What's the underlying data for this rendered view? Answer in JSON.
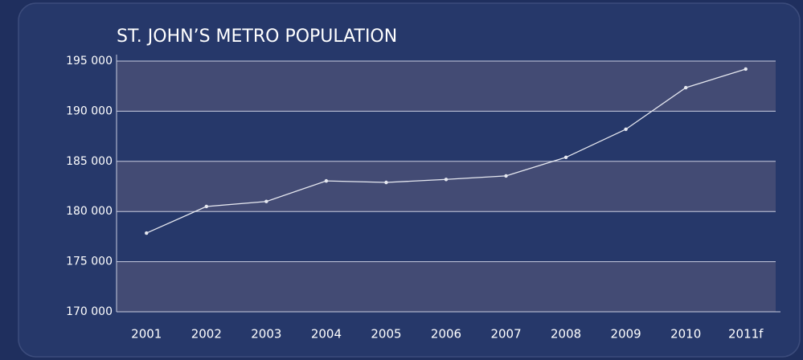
{
  "chart_data": {
    "type": "line",
    "title": "ST. JOHN’S METRO POPULATION",
    "categories": [
      "2001",
      "2002",
      "2003",
      "2004",
      "2005",
      "2006",
      "2007",
      "2008",
      "2009",
      "2010",
      "2011f"
    ],
    "series": [
      {
        "name": "Population",
        "color": "#e6e8f0",
        "values": [
          177850,
          180500,
          181000,
          183050,
          182900,
          183200,
          183550,
          185400,
          188200,
          192350,
          194200
        ]
      }
    ],
    "ylim": [
      170000,
      195000
    ],
    "yticks": [
      {
        "value": 170000,
        "label": "170 000"
      },
      {
        "value": 175000,
        "label": "175 000"
      },
      {
        "value": 180000,
        "label": "180 000"
      },
      {
        "value": 185000,
        "label": "185 000"
      },
      {
        "value": 190000,
        "label": "190 000"
      },
      {
        "value": 195000,
        "label": "195 000"
      }
    ],
    "grid": true
  }
}
